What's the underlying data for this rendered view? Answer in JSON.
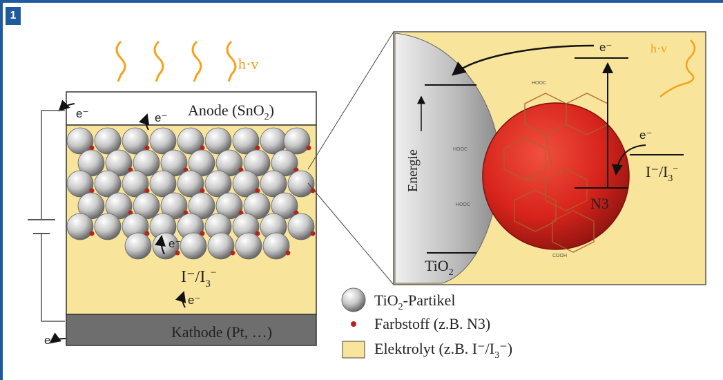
{
  "figure_number": "1",
  "photon": "h·v",
  "electron": "e⁻",
  "anode_label_main": "Anode (SnO",
  "anode_sub": "2",
  "anode_close": ")",
  "cathode_label": "Kathode (Pt, …)",
  "electrolyte_main": "I⁻/I",
  "electrolyte_sub": "3",
  "electrolyte_sup": "−",
  "tio2_main": "TiO",
  "tio2_sub": "2",
  "energie": "Energie",
  "dye": "N3",
  "hooc": "HOOC",
  "cooh": "COOH",
  "legend": {
    "particles_main": "TiO",
    "particles_sub": "2",
    "particles_rest": "-Partikel",
    "dye": "Farbstoff (z.B. N3)",
    "electrolyte_main": "Elektrolyt (z.B. I⁻/I",
    "electrolyte_sub": "3",
    "electrolyte_rest": "⁻)"
  },
  "colors": {
    "frame": "#1f5a9e",
    "electrolyte": "#f8e49a",
    "cathode": "#6e6e6e",
    "dye_sphere": "#d8241c",
    "photon_wave": "#f5a21a",
    "dye_dot": "#b3261e"
  }
}
